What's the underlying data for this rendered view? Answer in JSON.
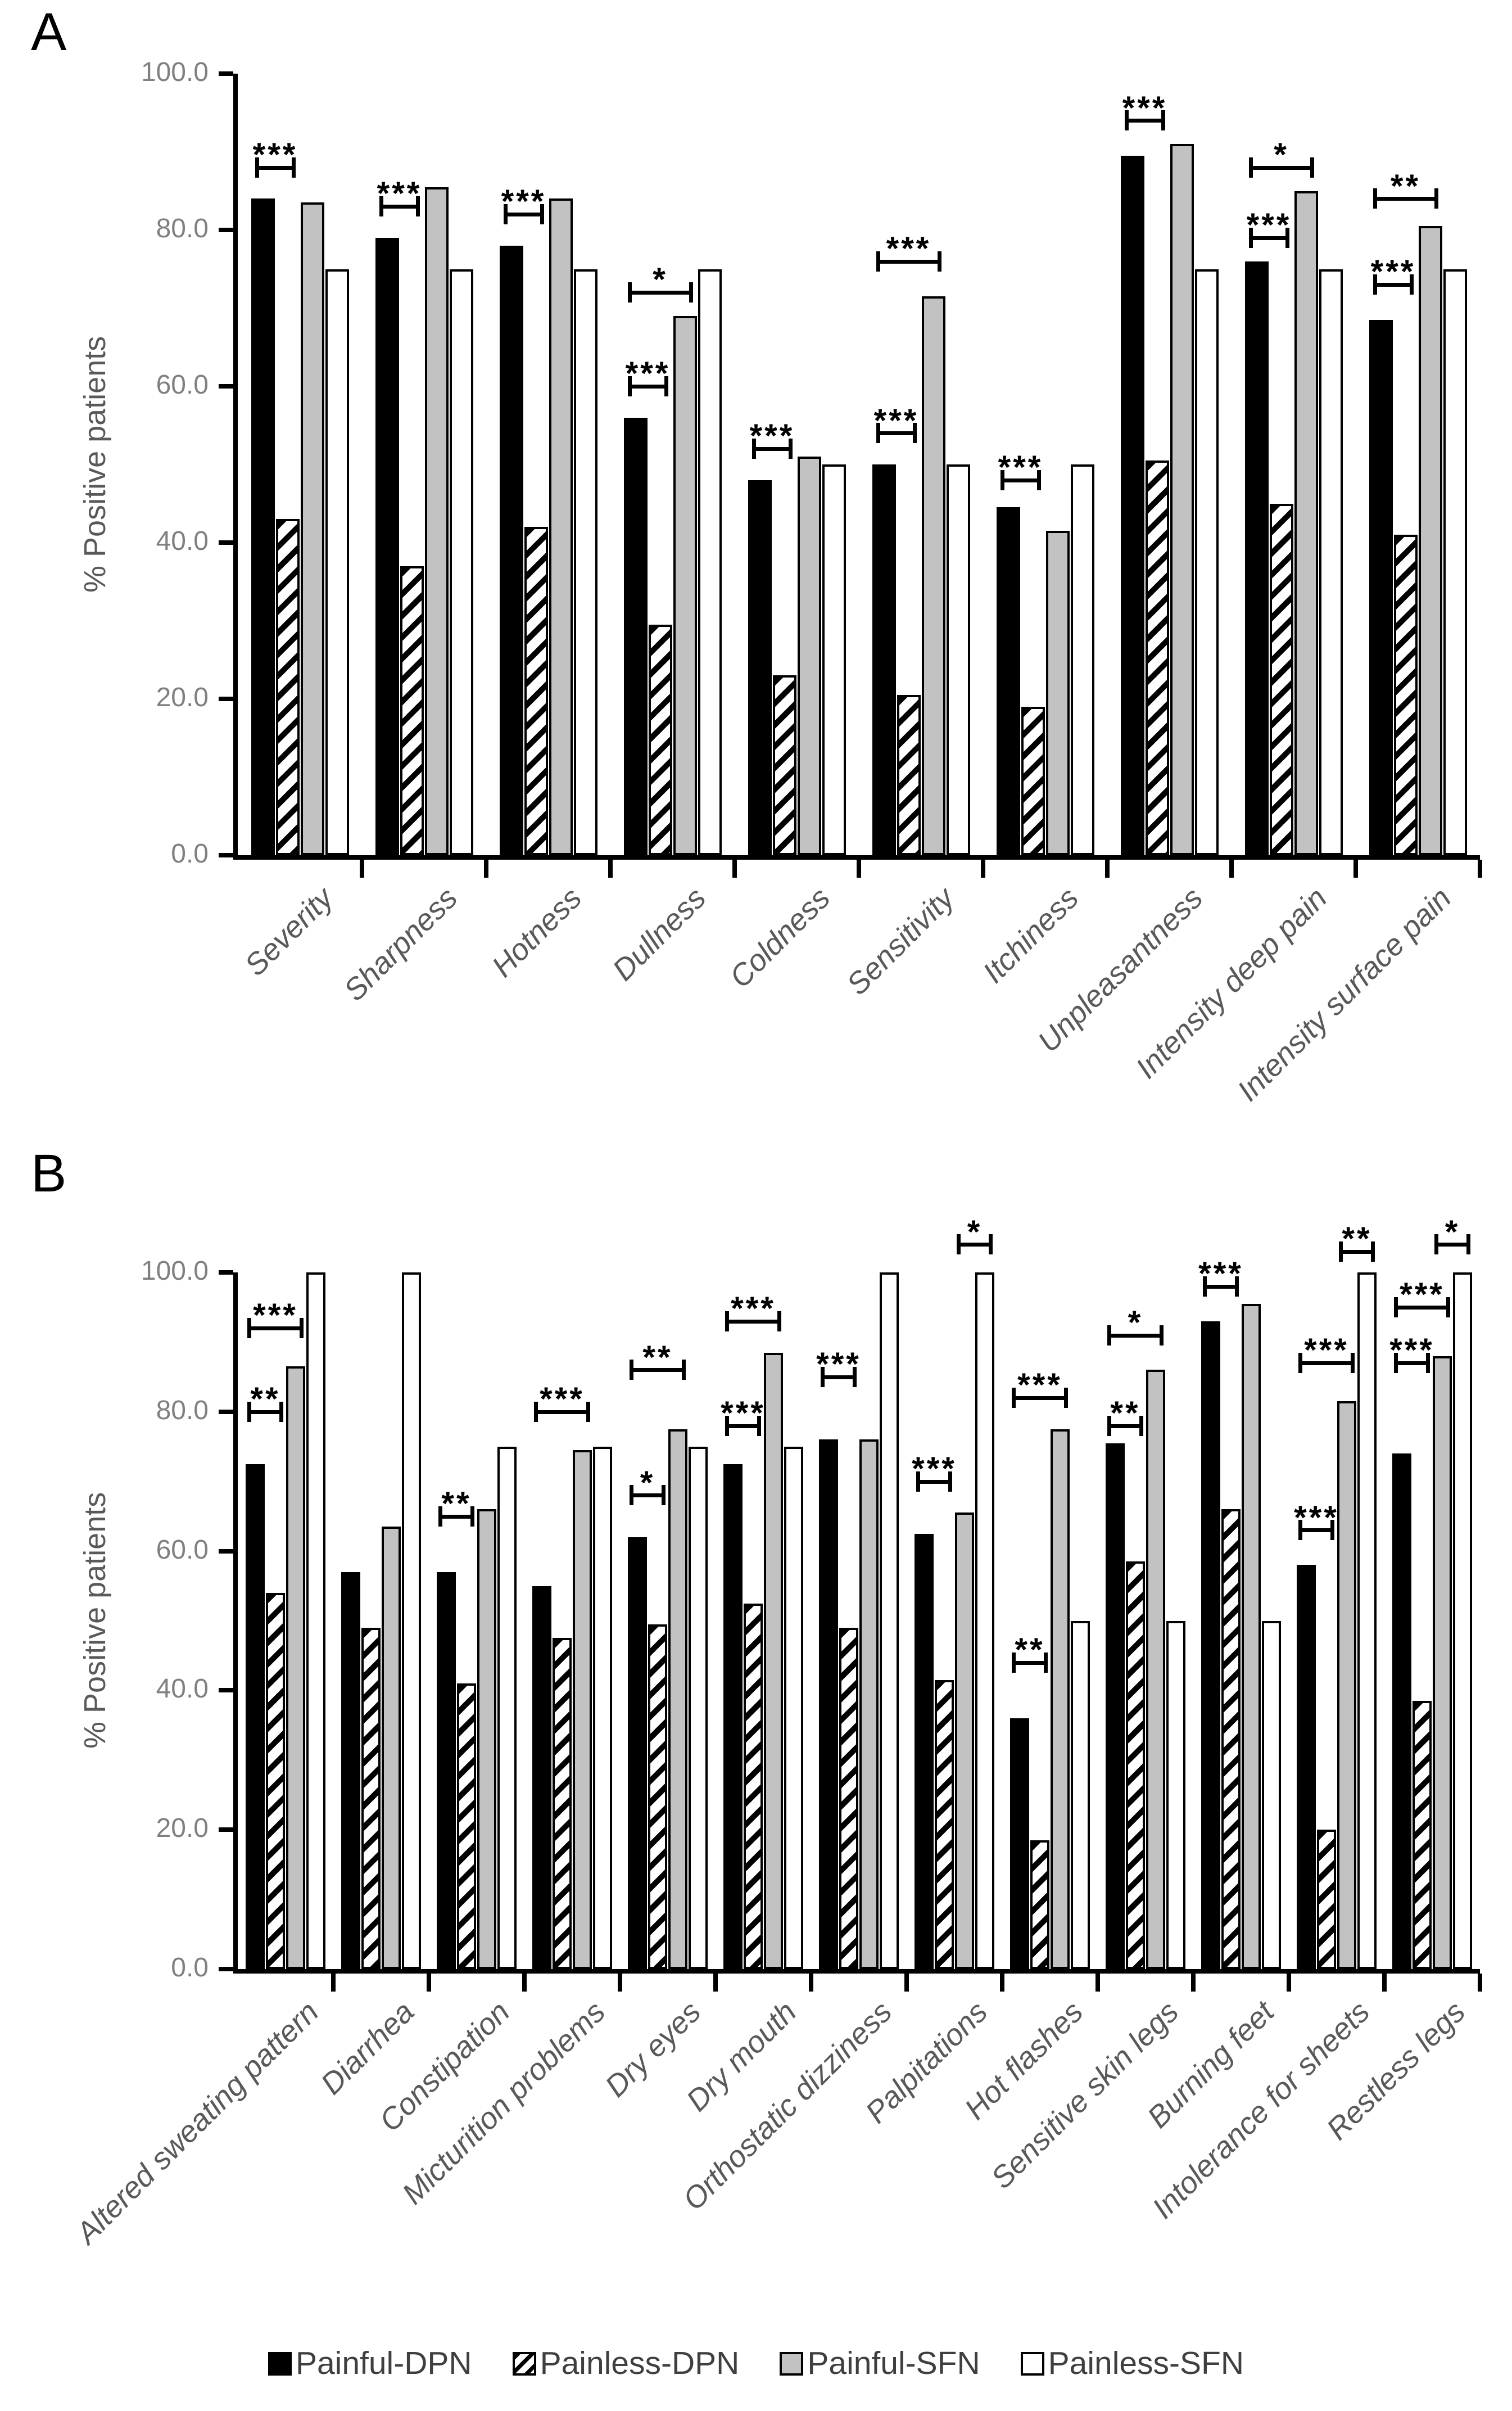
{
  "figure": {
    "panels": [
      {
        "label": "A"
      },
      {
        "label": "B"
      }
    ]
  },
  "colors": {
    "bar_black": "#000000",
    "bar_gray": "#c2c2c2",
    "bar_white": "#ffffff",
    "hatch_pattern": "black-diagonal-stripes-on-white",
    "axis_tick_text": "#808080",
    "axis_title_text": "#595959",
    "legend_text": "#3f3f3f"
  },
  "legend": {
    "items": [
      {
        "label": "Painful-DPN",
        "fill": "black"
      },
      {
        "label": "Painless-DPN",
        "fill": "hatched"
      },
      {
        "label": "Painful-SFN",
        "fill": "gray"
      },
      {
        "label": "Painless-SFN",
        "fill": "white"
      }
    ]
  },
  "chart_data": [
    {
      "type": "bar",
      "panel_label": "A",
      "title": "",
      "xlabel": "",
      "ylabel": "% Positive patients",
      "ylim": [
        0,
        100
      ],
      "yticks": [
        "0.0",
        "20.0",
        "40.0",
        "60.0",
        "80.0",
        "100.0"
      ],
      "grid": false,
      "legend_position": "bottom-shared",
      "series": [
        "Painful-DPN",
        "Painless-DPN",
        "Painful-SFN",
        "Painless-SFN"
      ],
      "fills": [
        "black",
        "hatched",
        "gray",
        "white"
      ],
      "categories": [
        "Severity",
        "Sharpness",
        "Hotness",
        "Dullness",
        "Coldness",
        "Sensitivity",
        "Itchiness",
        "Unpleasantness",
        "Intensity deep pain",
        "Intensity surface pain"
      ],
      "values": [
        [
          84.0,
          43.0,
          83.5,
          75.0
        ],
        [
          79.0,
          37.0,
          85.5,
          75.0
        ],
        [
          78.0,
          42.0,
          84.0,
          75.0
        ],
        [
          56.0,
          29.5,
          69.0,
          75.0
        ],
        [
          48.0,
          23.0,
          51.0,
          50.0
        ],
        [
          50.0,
          20.5,
          71.5,
          50.0
        ],
        [
          44.5,
          19.0,
          41.5,
          50.0
        ],
        [
          89.5,
          50.5,
          91.0,
          75.0
        ],
        [
          76.0,
          45.0,
          85.0,
          75.0
        ],
        [
          68.5,
          41.0,
          80.5,
          75.0
        ]
      ],
      "significance_markers": [
        [
          {
            "label": "***",
            "from": 0,
            "to": 1,
            "y": 88
          }
        ],
        [
          {
            "label": "***",
            "from": 0,
            "to": 1,
            "y": 83
          }
        ],
        [
          {
            "label": "***",
            "from": 0,
            "to": 1,
            "y": 82
          }
        ],
        [
          {
            "label": "***",
            "from": 0,
            "to": 1,
            "y": 60
          },
          {
            "label": "*",
            "from": 0,
            "to": 2,
            "y": 72
          }
        ],
        [
          {
            "label": "***",
            "from": 0,
            "to": 1,
            "y": 52
          }
        ],
        [
          {
            "label": "***",
            "from": 0,
            "to": 1,
            "y": 54
          },
          {
            "label": "***",
            "from": 0,
            "to": 2,
            "y": 76
          }
        ],
        [
          {
            "label": "***",
            "from": 0,
            "to": 1,
            "y": 48
          }
        ],
        [
          {
            "label": "***",
            "from": 0,
            "to": 1,
            "y": 94
          }
        ],
        [
          {
            "label": "***",
            "from": 0,
            "to": 1,
            "y": 79
          },
          {
            "label": "*",
            "from": 0,
            "to": 2,
            "y": 88
          }
        ],
        [
          {
            "label": "***",
            "from": 0,
            "to": 1,
            "y": 73
          },
          {
            "label": "**",
            "from": 0,
            "to": 2,
            "y": 84
          }
        ]
      ]
    },
    {
      "type": "bar",
      "panel_label": "B",
      "title": "",
      "xlabel": "",
      "ylabel": "% Positive patients",
      "ylim": [
        0,
        100
      ],
      "yticks": [
        "0.0",
        "20.0",
        "40.0",
        "60.0",
        "80.0",
        "100.0"
      ],
      "grid": false,
      "legend_position": "bottom-shared",
      "series": [
        "Painful-DPN",
        "Painless-DPN",
        "Painful-SFN",
        "Painless-SFN"
      ],
      "fills": [
        "black",
        "hatched",
        "gray",
        "white"
      ],
      "categories": [
        "Altered sweating pattern",
        "Diarrhea",
        "Constipation",
        "Micturition problems",
        "Dry eyes",
        "Dry mouth",
        "Orthostatic dizziness",
        "Palpitations",
        "Hot flashes",
        "Sensitive skin legs",
        "Burning feet",
        "Intolerance for sheets",
        "Restless legs"
      ],
      "values": [
        [
          72.5,
          54.0,
          86.5,
          100.0
        ],
        [
          57.0,
          49.0,
          63.5,
          100.0
        ],
        [
          57.0,
          41.0,
          66.0,
          75.0
        ],
        [
          55.0,
          47.5,
          74.5,
          75.0
        ],
        [
          62.0,
          49.5,
          77.5,
          75.0
        ],
        [
          72.5,
          52.5,
          88.5,
          75.0
        ],
        [
          76.0,
          49.0,
          76.0,
          100.0
        ],
        [
          62.5,
          41.5,
          65.5,
          100.0
        ],
        [
          36.0,
          18.5,
          77.5,
          50.0
        ],
        [
          75.5,
          58.5,
          86.0,
          50.0
        ],
        [
          93.0,
          66.0,
          95.5,
          50.0
        ],
        [
          58.0,
          20.0,
          81.5,
          100.0
        ],
        [
          74.0,
          38.5,
          88.0,
          100.0
        ]
      ],
      "significance_markers": [
        [
          {
            "label": "**",
            "from": 0,
            "to": 1,
            "y": 80
          },
          {
            "label": "***",
            "from": 0,
            "to": 2,
            "y": 92
          }
        ],
        [],
        [
          {
            "label": "**",
            "from": 0,
            "to": 1,
            "y": 65
          }
        ],
        [
          {
            "label": "***",
            "from": 0,
            "to": 2,
            "y": 80
          }
        ],
        [
          {
            "label": "*",
            "from": 0,
            "to": 1,
            "y": 68
          },
          {
            "label": "**",
            "from": 0,
            "to": 2,
            "y": 86
          }
        ],
        [
          {
            "label": "***",
            "from": 0,
            "to": 1,
            "y": 78
          },
          {
            "label": "***",
            "from": 0,
            "to": 2,
            "y": 93
          }
        ],
        [
          {
            "label": "***",
            "from": 0,
            "to": 1,
            "y": 85
          }
        ],
        [
          {
            "label": "***",
            "from": 0,
            "to": 1,
            "y": 70
          },
          {
            "label": "*",
            "from": 2,
            "to": 3,
            "y": 104
          }
        ],
        [
          {
            "label": "**",
            "from": 0,
            "to": 1,
            "y": 44
          },
          {
            "label": "***",
            "from": 0,
            "to": 2,
            "y": 82
          }
        ],
        [
          {
            "label": "**",
            "from": 0,
            "to": 1,
            "y": 78
          },
          {
            "label": "*",
            "from": 0,
            "to": 2,
            "y": 91
          }
        ],
        [
          {
            "label": "***",
            "from": 0,
            "to": 1,
            "y": 98
          }
        ],
        [
          {
            "label": "***",
            "from": 0,
            "to": 1,
            "y": 63
          },
          {
            "label": "***",
            "from": 0,
            "to": 2,
            "y": 87
          },
          {
            "label": "**",
            "from": 2,
            "to": 3,
            "y": 103
          }
        ],
        [
          {
            "label": "***",
            "from": 0,
            "to": 1,
            "y": 87
          },
          {
            "label": "***",
            "from": 0,
            "to": 2,
            "y": 95
          },
          {
            "label": "*",
            "from": 2,
            "to": 3,
            "y": 104
          }
        ]
      ]
    }
  ]
}
